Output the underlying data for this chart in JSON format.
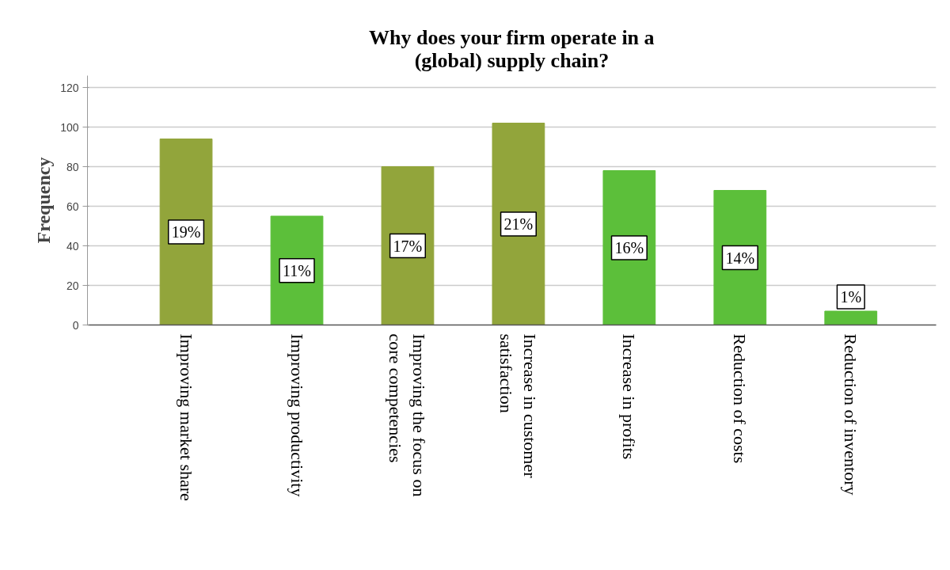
{
  "chart_data": {
    "type": "bar",
    "title": "Why does your firm operate in a\n(global) supply chain?",
    "ylabel": "Frequency",
    "categories": [
      "Improving market share",
      "Improving productivity",
      "Improving the focus on core competencies",
      "Increase in customer satisfaction",
      "Increase in profits",
      "Reduction of costs",
      "Reduction of inventory"
    ],
    "values": [
      94,
      55,
      80,
      102,
      78,
      68,
      7
    ],
    "colors": [
      "#92a53b",
      "#5cbf3a",
      "#92a53b",
      "#92a53b",
      "#5cbf3a",
      "#5cbf3a",
      "#5cbf3a"
    ],
    "annotations": [
      "19%",
      "11%",
      "17%",
      "21%",
      "16%",
      "14%",
      "1%"
    ],
    "ylim": [
      0,
      126
    ],
    "yticks": [
      0,
      20,
      40,
      60,
      80,
      100,
      120
    ],
    "grid": "y"
  }
}
